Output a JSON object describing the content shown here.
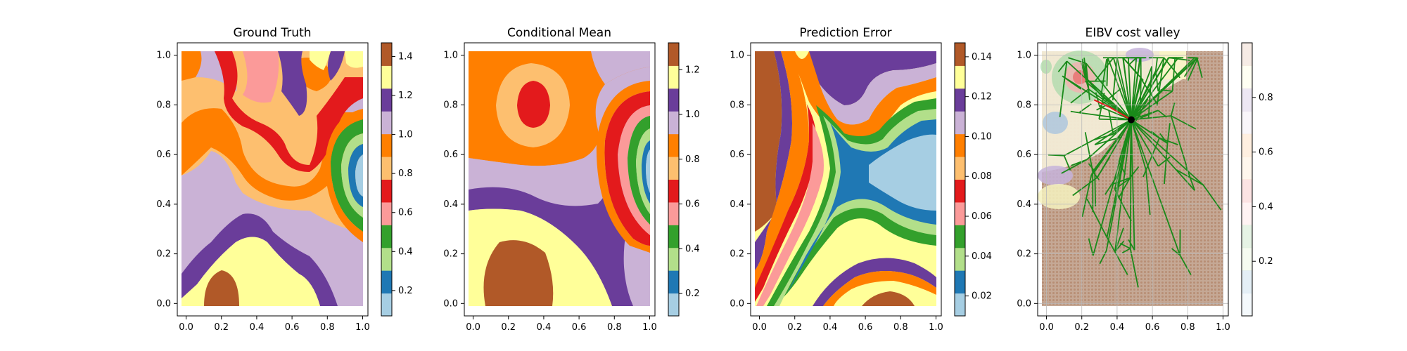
{
  "chart_data": [
    {
      "type": "heatmap",
      "title": "Ground Truth",
      "x_ticks": [
        "0.0",
        "0.2",
        "0.4",
        "0.6",
        "0.8",
        "1.0"
      ],
      "y_ticks": [
        "0.0",
        "0.2",
        "0.4",
        "0.6",
        "0.8",
        "1.0"
      ],
      "xlim": [
        -0.05,
        1.03
      ],
      "ylim": [
        -0.05,
        1.05
      ],
      "colorbar": {
        "range": [
          0.07,
          1.47
        ],
        "ticks": [
          "0.2",
          "0.4",
          "0.6",
          "0.8",
          "1.0",
          "1.2",
          "1.4"
        ],
        "tick_values": [
          0.2,
          0.4,
          0.6,
          0.8,
          1.0,
          1.2,
          1.4
        ],
        "levels": 12,
        "colors": [
          "#a6cee3",
          "#1f78b4",
          "#b2df8a",
          "#33a02c",
          "#fb9a99",
          "#e31a1c",
          "#fdbf6f",
          "#ff7f00",
          "#cab2d6",
          "#6a3d9a",
          "#ffff99",
          "#b15928"
        ]
      }
    },
    {
      "type": "heatmap",
      "title": "Conditional Mean",
      "x_ticks": [
        "0.0",
        "0.2",
        "0.4",
        "0.6",
        "0.8",
        "1.0"
      ],
      "y_ticks": [
        "0.0",
        "0.2",
        "0.4",
        "0.6",
        "0.8",
        "1.0"
      ],
      "xlim": [
        -0.05,
        1.03
      ],
      "ylim": [
        -0.05,
        1.05
      ],
      "colorbar": {
        "range": [
          0.1,
          1.32
        ],
        "ticks": [
          "0.2",
          "0.4",
          "0.6",
          "0.8",
          "1.0",
          "1.2"
        ],
        "tick_values": [
          0.2,
          0.4,
          0.6,
          0.8,
          1.0,
          1.2
        ],
        "levels": 12,
        "colors": [
          "#a6cee3",
          "#1f78b4",
          "#b2df8a",
          "#33a02c",
          "#fb9a99",
          "#e31a1c",
          "#fdbf6f",
          "#ff7f00",
          "#cab2d6",
          "#6a3d9a",
          "#ffff99",
          "#b15928"
        ]
      }
    },
    {
      "type": "heatmap",
      "title": "Prediction Error",
      "x_ticks": [
        "0.0",
        "0.2",
        "0.4",
        "0.6",
        "0.8",
        "1.0"
      ],
      "y_ticks": [
        "0.0",
        "0.2",
        "0.4",
        "0.6",
        "0.8",
        "1.0"
      ],
      "xlim": [
        -0.05,
        1.03
      ],
      "ylim": [
        -0.05,
        1.05
      ],
      "colorbar": {
        "range": [
          0.01,
          0.147
        ],
        "ticks": [
          "0.02",
          "0.04",
          "0.06",
          "0.08",
          "0.10",
          "0.12",
          "0.14"
        ],
        "tick_values": [
          0.02,
          0.04,
          0.06,
          0.08,
          0.1,
          0.12,
          0.14
        ],
        "levels": 12,
        "colors": [
          "#a6cee3",
          "#1f78b4",
          "#b2df8a",
          "#33a02c",
          "#fb9a99",
          "#e31a1c",
          "#fdbf6f",
          "#ff7f00",
          "#cab2d6",
          "#6a3d9a",
          "#ffff99",
          "#b15928"
        ]
      }
    },
    {
      "type": "heatmap",
      "title": "EIBV cost valley",
      "x_ticks": [
        "0.0",
        "0.2",
        "0.4",
        "0.6",
        "0.8",
        "1.0"
      ],
      "y_ticks": [
        "0.0",
        "0.2",
        "0.4",
        "0.6",
        "0.8",
        "1.0"
      ],
      "xlim": [
        -0.05,
        1.03
      ],
      "ylim": [
        -0.05,
        1.05
      ],
      "grid": true,
      "overlay": {
        "type": "tree",
        "root": [
          0.48,
          0.74
        ],
        "tree_color": "#1a8a1a",
        "path_color": "#e31a1c",
        "root_color": "#000000",
        "selected_path": [
          [
            0.48,
            0.74
          ],
          [
            0.36,
            0.79
          ],
          [
            0.27,
            0.82
          ]
        ]
      },
      "colorbar": {
        "range": [
          0.0,
          1.0
        ],
        "ticks": [
          "0.2",
          "0.4",
          "0.6",
          "0.8"
        ],
        "tick_values": [
          0.2,
          0.4,
          0.6,
          0.8
        ],
        "levels": 12,
        "colors": [
          "#a6cee3",
          "#1f78b4",
          "#b2df8a",
          "#33a02c",
          "#fb9a99",
          "#e31a1c",
          "#fdbf6f",
          "#ff7f00",
          "#cab2d6",
          "#6a3d9a",
          "#ffff99",
          "#b15928"
        ],
        "alpha": 0.12
      }
    }
  ]
}
